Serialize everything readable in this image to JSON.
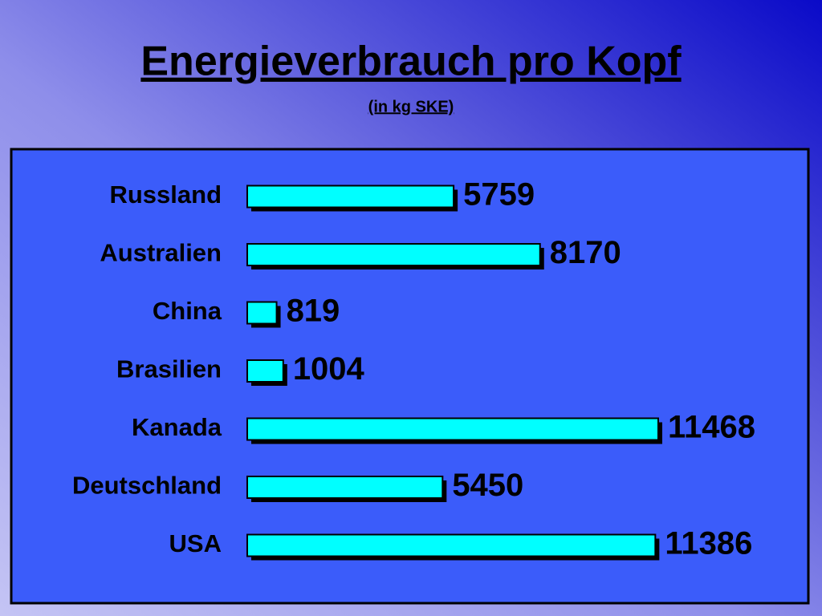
{
  "chart_data": {
    "type": "bar",
    "orientation": "horizontal",
    "title": "Energieverbrauch pro Kopf",
    "subtitle": "(in kg SKE)",
    "categories": [
      "Russland",
      "Australien",
      "China",
      "Brasilien",
      "Kanada",
      "Deutschland",
      "USA"
    ],
    "values": [
      5759,
      8170,
      819,
      1004,
      11468,
      5450,
      11386
    ],
    "color": "#00ffff"
  }
}
